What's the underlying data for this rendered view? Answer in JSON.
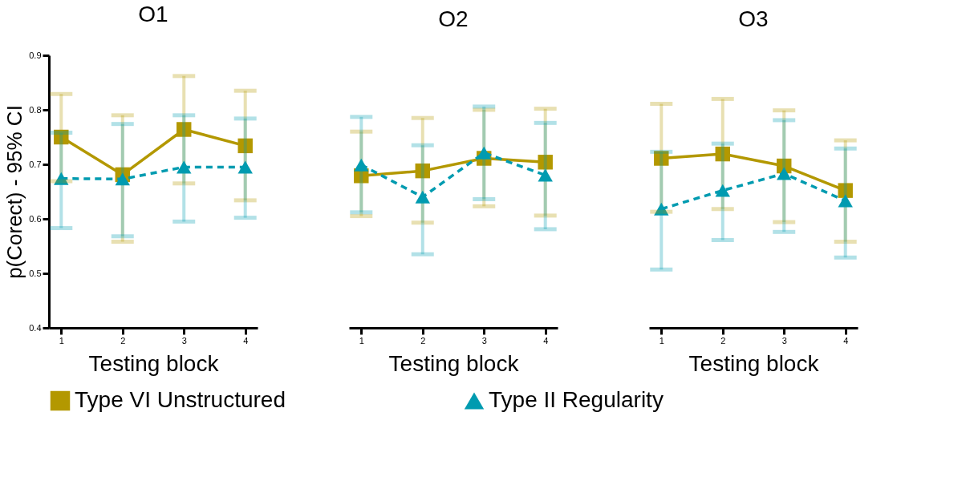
{
  "chart_data": [
    {
      "type": "line",
      "title": "O1",
      "xlabel": "Testing block",
      "ylabel": "p(Corect) - 95% CI",
      "x": [
        1,
        2,
        3,
        4
      ],
      "xlim": [
        0.8,
        4.2
      ],
      "xticks": [
        1,
        2,
        3,
        4
      ],
      "ylim": [
        0.4,
        0.9
      ],
      "yticks": [
        0.4,
        0.5,
        0.6,
        0.7,
        0.8,
        0.9
      ],
      "grid": false,
      "legend": "bottom",
      "series": [
        {
          "name": "Type VI Unstructured",
          "color": "#b39800",
          "marker": "square",
          "line_style": "solid",
          "values": [
            0.75,
            0.681,
            0.764,
            0.734
          ],
          "errors": [
            [
              0.669,
              0.829
            ],
            [
              0.558,
              0.79
            ],
            [
              0.665,
              0.862
            ],
            [
              0.634,
              0.835
            ]
          ]
        },
        {
          "name": "Type II Regularity",
          "color": "#009bb0",
          "marker": "triangle",
          "line_style": "dashed",
          "values": [
            0.674,
            0.673,
            0.695,
            0.695
          ],
          "errors": [
            [
              0.583,
              0.758
            ],
            [
              0.568,
              0.774
            ],
            [
              0.595,
              0.79
            ],
            [
              0.602,
              0.784
            ]
          ]
        }
      ]
    },
    {
      "type": "line",
      "title": "O2",
      "xlabel": "Testing block",
      "x": [
        1,
        2,
        3,
        4
      ],
      "xlim": [
        0.8,
        4.2
      ],
      "xticks": [
        1,
        2,
        3,
        4
      ],
      "ylim": [
        0.4,
        0.9
      ],
      "tick_labels": "x",
      "grid": false,
      "legend": "bottom",
      "series": [
        {
          "name": "Type VI Unstructured",
          "color": "#b39800",
          "marker": "square",
          "line_style": "solid",
          "values": [
            0.679,
            0.688,
            0.711,
            0.704
          ],
          "errors": [
            [
              0.605,
              0.76
            ],
            [
              0.593,
              0.785
            ],
            [
              0.623,
              0.8
            ],
            [
              0.606,
              0.802
            ]
          ]
        },
        {
          "name": "Type II Regularity",
          "color": "#009bb0",
          "marker": "triangle",
          "line_style": "dashed",
          "values": [
            0.699,
            0.64,
            0.721,
            0.68
          ],
          "errors": [
            [
              0.612,
              0.787
            ],
            [
              0.535,
              0.735
            ],
            [
              0.636,
              0.806
            ],
            [
              0.581,
              0.776
            ]
          ]
        }
      ]
    },
    {
      "type": "line",
      "title": "O3",
      "xlabel": "Testing block",
      "x": [
        1,
        2,
        3,
        4
      ],
      "xlim": [
        0.8,
        4.2
      ],
      "xticks": [
        1,
        2,
        3,
        4
      ],
      "ylim": [
        0.4,
        0.9
      ],
      "tick_labels": "x",
      "grid": false,
      "legend": "bottom",
      "series": [
        {
          "name": "Type VI Unstructured",
          "color": "#b39800",
          "marker": "square",
          "line_style": "solid",
          "values": [
            0.711,
            0.719,
            0.697,
            0.652
          ],
          "errors": [
            [
              0.613,
              0.811
            ],
            [
              0.618,
              0.82
            ],
            [
              0.594,
              0.799
            ],
            [
              0.558,
              0.744
            ]
          ]
        },
        {
          "name": "Type II Regularity",
          "color": "#009bb0",
          "marker": "triangle",
          "line_style": "dashed",
          "values": [
            0.618,
            0.652,
            0.683,
            0.633
          ],
          "errors": [
            [
              0.507,
              0.723
            ],
            [
              0.561,
              0.738
            ],
            [
              0.576,
              0.781
            ],
            [
              0.529,
              0.729
            ]
          ]
        }
      ]
    }
  ]
}
